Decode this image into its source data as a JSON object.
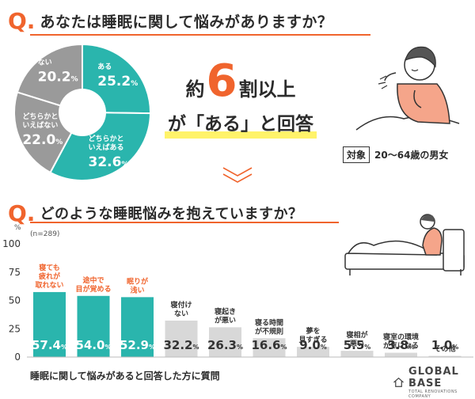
{
  "colors": {
    "accent": "#f0642d",
    "teal": "#2ab5ad",
    "gray": "#9a9a9a",
    "light_gray": "#d8d8d8",
    "highlight": "#fff36a"
  },
  "q1": {
    "mark": "Q.",
    "text": "あなたは睡眠に関して悩みがありますか？"
  },
  "headline": {
    "line1_pre": "約",
    "line1_big": "6",
    "line1_post": "割以上",
    "line2": "が「ある」と回答"
  },
  "target": {
    "label": "対象",
    "value": "20～64歳の男女"
  },
  "q2": {
    "mark": "Q.",
    "text": "どのような睡眠悩みを抱えていますか？"
  },
  "caption": "睡眠に関して悩みがあると回答した方に質問",
  "logo": {
    "name": "GLOBAL BASE",
    "sub": "TOTAL RENOVATIONS COMPANY"
  },
  "chart_data": [
    {
      "type": "pie",
      "slices": [
        {
          "label": "ある",
          "value": 25.2,
          "color": "#2ab5ad"
        },
        {
          "label": "どちらかといえばある",
          "value": 32.6,
          "color": "#2ab5ad"
        },
        {
          "label": "どちらかといえばない",
          "value": 22.0,
          "color": "#9a9a9a"
        },
        {
          "label": "ない",
          "value": 20.2,
          "color": "#9a9a9a"
        }
      ],
      "unit": "%"
    },
    {
      "type": "bar",
      "note": "(n=289)",
      "yunit": "%",
      "ylim": [
        0,
        100
      ],
      "yticks": [
        "0",
        "25",
        "50",
        "75",
        "100"
      ],
      "categories": [
        "寝ても疲れが取れない",
        "途中で目が覚める",
        "眠りが浅い",
        "寝付けない",
        "寝起きが悪い",
        "寝る時間が不規則",
        "夢を見すぎる",
        "寝相が悪い",
        "寝室の環境が気になる",
        "その他"
      ],
      "labels_lines": [
        [
          "寝ても",
          "疲れが",
          "取れない"
        ],
        [
          "途中で",
          "目が覚める"
        ],
        [
          "眠りが",
          "浅い"
        ],
        [
          "寝付け",
          "ない"
        ],
        [
          "寝起き",
          "が悪い"
        ],
        [
          "寝る時間",
          "が不規則"
        ],
        [
          "夢を",
          "見すぎる"
        ],
        [
          "寝相が",
          "悪い"
        ],
        [
          "寝室の環境",
          "が気になる"
        ],
        [
          "その他"
        ]
      ],
      "values": [
        57.4,
        54.0,
        52.9,
        32.2,
        26.3,
        16.6,
        9.0,
        5.5,
        3.8,
        1.0
      ],
      "value_labels": [
        "57.4",
        "54.0",
        "52.9",
        "32.2",
        "26.3",
        "16.6",
        "9.0",
        "5.5",
        "3.8",
        "1.0"
      ]
    }
  ]
}
